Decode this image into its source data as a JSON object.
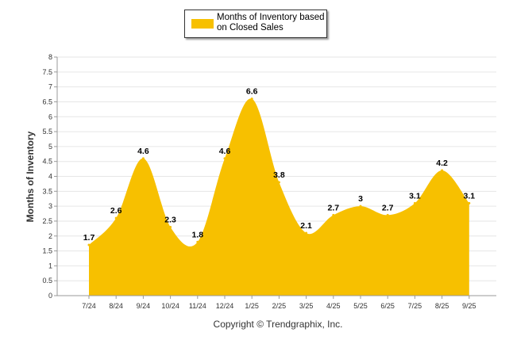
{
  "legend": {
    "label": "Months of Inventory based on Closed Sales",
    "color": "#F7C000"
  },
  "copyright": "Copyright © Trendgraphix, Inc.",
  "chart_data": {
    "type": "area",
    "title": "",
    "xlabel": "",
    "ylabel": "Months of Inventory",
    "ylim": [
      0,
      8
    ],
    "yticks": [
      "0",
      "0.5",
      "1",
      "1.5",
      "2",
      "2.5",
      "3",
      "3.5",
      "4",
      "4.5",
      "5",
      "5.5",
      "6",
      "6.5",
      "7",
      "7.5",
      "8"
    ],
    "grid": true,
    "legend_position": "top-center",
    "categories": [
      "7/24",
      "8/24",
      "9/24",
      "10/24",
      "11/24",
      "12/24",
      "1/25",
      "2/25",
      "3/25",
      "4/25",
      "5/25",
      "6/25",
      "7/25",
      "8/25",
      "9/25"
    ],
    "series": [
      {
        "name": "Months of Inventory based on Closed Sales",
        "color": "#F7C000",
        "values": [
          1.7,
          2.6,
          4.6,
          2.3,
          1.8,
          4.6,
          6.6,
          3.8,
          2.1,
          2.7,
          3,
          2.7,
          3.1,
          4.2,
          3.1
        ],
        "labels": [
          "1.7",
          "2.6",
          "4.6",
          "2.3",
          "1.8",
          "4.6",
          "6.6",
          "3.8",
          "2.1",
          "2.7",
          "3",
          "2.7",
          "3.1",
          "4.2",
          "3.1"
        ]
      }
    ]
  }
}
